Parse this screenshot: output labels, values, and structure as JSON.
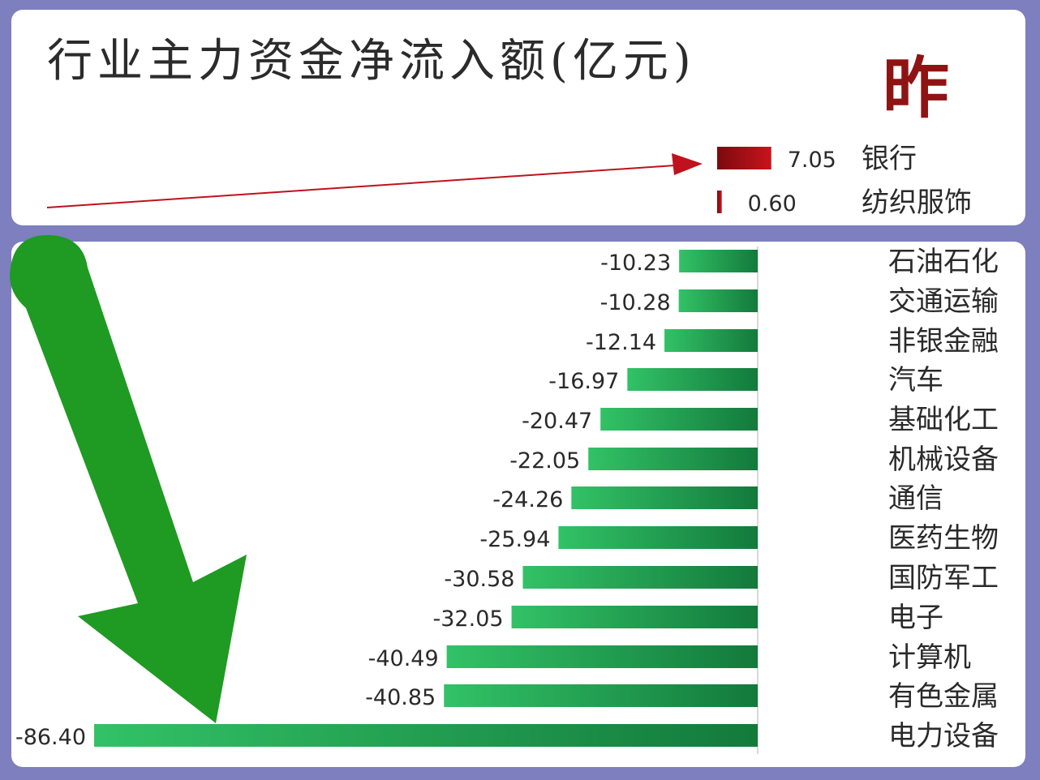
{
  "title": "行业主力资金净流入额(亿元)",
  "day_label": "昨",
  "colors": {
    "positive": "#9e0d12",
    "negative": "#2fb45a",
    "arrow_green": "#1f9a22",
    "arrow_red": "#c0121c"
  },
  "chart_data": {
    "type": "bar",
    "orientation": "horizontal",
    "title": "行业主力资金净流入额(亿元)",
    "xlabel": "",
    "ylabel": "",
    "xlim": [
      -86.4,
      7.05
    ],
    "grid": false,
    "categories": [
      "银行",
      "纺织服饰",
      "石油石化",
      "交通运输",
      "非银金融",
      "汽车",
      "基础化工",
      "机械设备",
      "通信",
      "医药生物",
      "国防军工",
      "电子",
      "计算机",
      "有色金属",
      "电力设备"
    ],
    "values": [
      7.05,
      0.6,
      -10.23,
      -10.28,
      -12.14,
      -16.97,
      -20.47,
      -22.05,
      -24.26,
      -25.94,
      -30.58,
      -32.05,
      -40.49,
      -40.85,
      -86.4
    ],
    "value_labels": [
      "7.05",
      "0.60",
      "-10.23",
      "-10.28",
      "-12.14",
      "-16.97",
      "-20.47",
      "-22.05",
      "-24.26",
      "-25.94",
      "-30.58",
      "-32.05",
      "-40.49",
      "-40.85",
      "-86.40"
    ]
  }
}
